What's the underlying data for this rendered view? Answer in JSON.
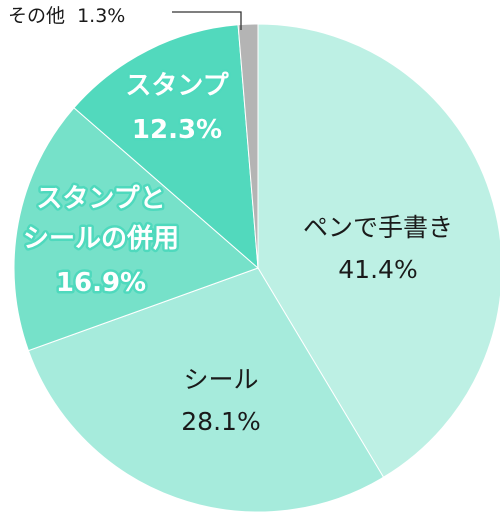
{
  "chart_data": {
    "type": "pie",
    "slices": [
      {
        "label": "ペンで手書き",
        "value": 41.4,
        "value_text": "41.4%",
        "color": "#bdf0e4"
      },
      {
        "label": "シール",
        "value": 28.1,
        "value_text": "28.1%",
        "color": "#a6ebdc"
      },
      {
        "label": "スタンプと\nシールの併用",
        "value": 16.9,
        "value_text": "16.9%",
        "color": "#76e1c9"
      },
      {
        "label": "スタンプ",
        "value": 12.3,
        "value_text": "12.3%",
        "color": "#52d9bd"
      },
      {
        "label": "その他",
        "value": 1.3,
        "value_text": "1.3%",
        "color": "#b4b4b4"
      }
    ],
    "start_angle_deg": 0,
    "direction": "clockwise"
  }
}
